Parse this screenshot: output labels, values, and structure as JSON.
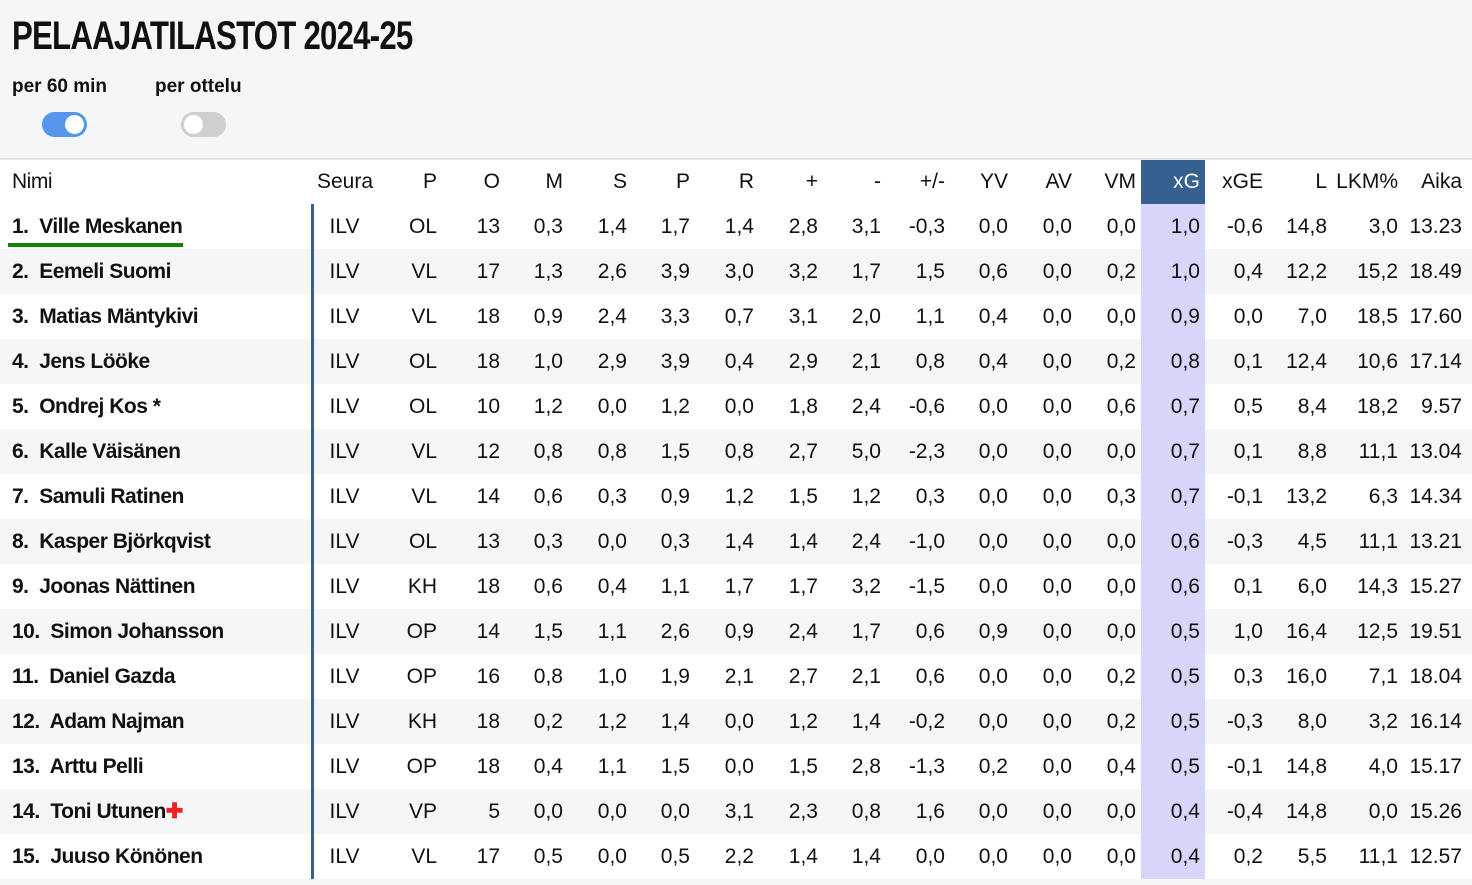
{
  "title": "PELAAJATILASTOT 2024-25",
  "toggles": [
    {
      "label": "per 60 min",
      "on": true,
      "color": "#5596ea"
    },
    {
      "label": "per ottelu",
      "on": false,
      "color": "#cfcfcf"
    }
  ],
  "columns": [
    "Nimi",
    "Seura",
    "P",
    "O",
    "M",
    "S",
    "P",
    "R",
    "+",
    "-",
    "+/-",
    "YV",
    "AV",
    "VM",
    "xG",
    "xGE",
    "L",
    "LKM%",
    "Aika"
  ],
  "highlighted_column": "xG",
  "selected_row": 0,
  "injury_icon": "red-cross",
  "rows": [
    {
      "rank": "1.",
      "name": "Ville Meskanen",
      "injured": false,
      "cells": [
        "ILV",
        "OL",
        "13",
        "0,3",
        "1,4",
        "1,7",
        "1,4",
        "2,8",
        "3,1",
        "-0,3",
        "0,0",
        "0,0",
        "0,0",
        "1,0",
        "-0,6",
        "14,8",
        "3,0",
        "13.23"
      ]
    },
    {
      "rank": "2.",
      "name": "Eemeli Suomi",
      "injured": false,
      "cells": [
        "ILV",
        "VL",
        "17",
        "1,3",
        "2,6",
        "3,9",
        "3,0",
        "3,2",
        "1,7",
        "1,5",
        "0,6",
        "0,0",
        "0,2",
        "1,0",
        "0,4",
        "12,2",
        "15,2",
        "18.49"
      ]
    },
    {
      "rank": "3.",
      "name": "Matias Mäntykivi",
      "injured": false,
      "cells": [
        "ILV",
        "VL",
        "18",
        "0,9",
        "2,4",
        "3,3",
        "0,7",
        "3,1",
        "2,0",
        "1,1",
        "0,4",
        "0,0",
        "0,0",
        "0,9",
        "0,0",
        "7,0",
        "18,5",
        "17.60"
      ]
    },
    {
      "rank": "4.",
      "name": "Jens Lööke",
      "injured": false,
      "cells": [
        "ILV",
        "OL",
        "18",
        "1,0",
        "2,9",
        "3,9",
        "0,4",
        "2,9",
        "2,1",
        "0,8",
        "0,4",
        "0,0",
        "0,2",
        "0,8",
        "0,1",
        "12,4",
        "10,6",
        "17.14"
      ]
    },
    {
      "rank": "5.",
      "name": "Ondrej Kos *",
      "injured": false,
      "cells": [
        "ILV",
        "OL",
        "10",
        "1,2",
        "0,0",
        "1,2",
        "0,0",
        "1,8",
        "2,4",
        "-0,6",
        "0,0",
        "0,0",
        "0,6",
        "0,7",
        "0,5",
        "8,4",
        "18,2",
        "9.57"
      ]
    },
    {
      "rank": "6.",
      "name": "Kalle Väisänen",
      "injured": false,
      "cells": [
        "ILV",
        "VL",
        "12",
        "0,8",
        "0,8",
        "1,5",
        "0,8",
        "2,7",
        "5,0",
        "-2,3",
        "0,0",
        "0,0",
        "0,0",
        "0,7",
        "0,1",
        "8,8",
        "11,1",
        "13.04"
      ]
    },
    {
      "rank": "7.",
      "name": "Samuli Ratinen",
      "injured": false,
      "cells": [
        "ILV",
        "VL",
        "14",
        "0,6",
        "0,3",
        "0,9",
        "1,2",
        "1,5",
        "1,2",
        "0,3",
        "0,0",
        "0,0",
        "0,3",
        "0,7",
        "-0,1",
        "13,2",
        "6,3",
        "14.34"
      ]
    },
    {
      "rank": "8.",
      "name": "Kasper Björkqvist",
      "injured": false,
      "cells": [
        "ILV",
        "OL",
        "13",
        "0,3",
        "0,0",
        "0,3",
        "1,4",
        "1,4",
        "2,4",
        "-1,0",
        "0,0",
        "0,0",
        "0,0",
        "0,6",
        "-0,3",
        "4,5",
        "11,1",
        "13.21"
      ]
    },
    {
      "rank": "9.",
      "name": "Joonas Nättinen",
      "injured": false,
      "cells": [
        "ILV",
        "KH",
        "18",
        "0,6",
        "0,4",
        "1,1",
        "1,7",
        "1,7",
        "3,2",
        "-1,5",
        "0,0",
        "0,0",
        "0,0",
        "0,6",
        "0,1",
        "6,0",
        "14,3",
        "15.27"
      ]
    },
    {
      "rank": "10.",
      "name": "Simon Johansson",
      "injured": false,
      "cells": [
        "ILV",
        "OP",
        "14",
        "1,5",
        "1,1",
        "2,6",
        "0,9",
        "2,4",
        "1,7",
        "0,6",
        "0,9",
        "0,0",
        "0,0",
        "0,5",
        "1,0",
        "16,4",
        "12,5",
        "19.51"
      ]
    },
    {
      "rank": "11.",
      "name": "Daniel Gazda",
      "injured": false,
      "cells": [
        "ILV",
        "OP",
        "16",
        "0,8",
        "1,0",
        "1,9",
        "2,1",
        "2,7",
        "2,1",
        "0,6",
        "0,0",
        "0,0",
        "0,2",
        "0,5",
        "0,3",
        "16,0",
        "7,1",
        "18.04"
      ]
    },
    {
      "rank": "12.",
      "name": "Adam Najman",
      "injured": false,
      "cells": [
        "ILV",
        "KH",
        "18",
        "0,2",
        "1,2",
        "1,4",
        "0,0",
        "1,2",
        "1,4",
        "-0,2",
        "0,0",
        "0,0",
        "0,2",
        "0,5",
        "-0,3",
        "8,0",
        "3,2",
        "16.14"
      ]
    },
    {
      "rank": "13.",
      "name": "Arttu Pelli",
      "injured": false,
      "cells": [
        "ILV",
        "OP",
        "18",
        "0,4",
        "1,1",
        "1,5",
        "0,0",
        "1,5",
        "2,8",
        "-1,3",
        "0,2",
        "0,0",
        "0,4",
        "0,5",
        "-0,1",
        "14,8",
        "4,0",
        "15.17"
      ]
    },
    {
      "rank": "14.",
      "name": "Toni Utunen",
      "injured": true,
      "cells": [
        "ILV",
        "VP",
        "5",
        "0,0",
        "0,0",
        "0,0",
        "3,1",
        "2,3",
        "0,8",
        "1,6",
        "0,0",
        "0,0",
        "0,0",
        "0,4",
        "-0,4",
        "14,8",
        "0,0",
        "15.26"
      ]
    },
    {
      "rank": "15.",
      "name": "Juuso Könönen",
      "injured": false,
      "cells": [
        "ILV",
        "VL",
        "17",
        "0,5",
        "0,0",
        "0,5",
        "2,2",
        "1,4",
        "1,4",
        "0,0",
        "0,0",
        "0,0",
        "0,0",
        "0,4",
        "0,2",
        "5,5",
        "11,1",
        "12.57"
      ]
    }
  ]
}
